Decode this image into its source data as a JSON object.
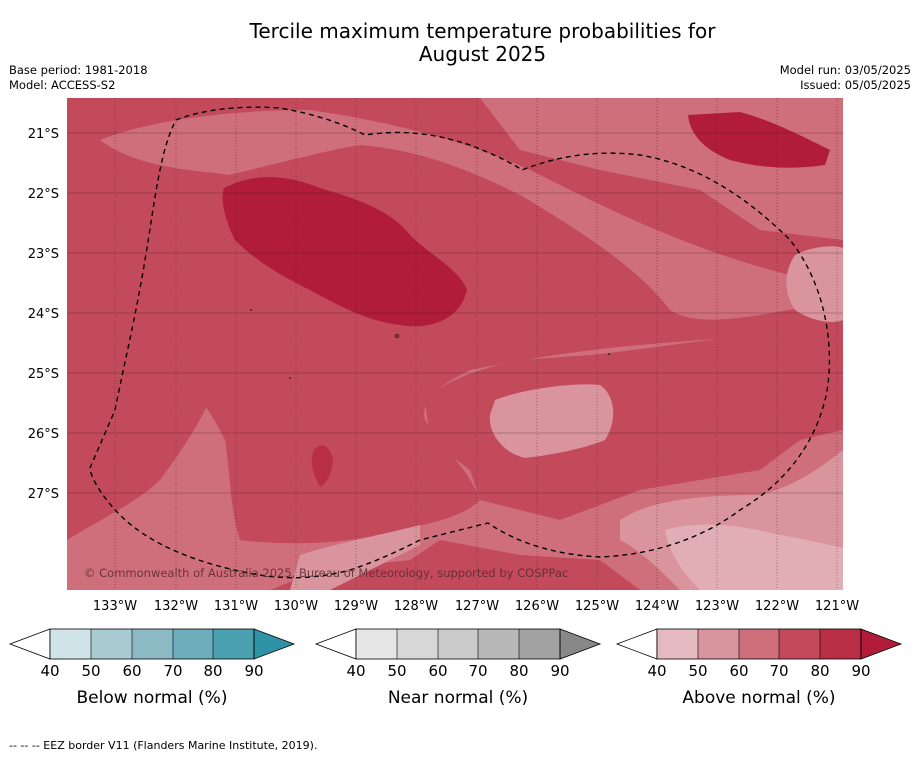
{
  "header": {
    "title_line1": "Tercile maximum temperature probabilities for",
    "title_line2": "August 2025",
    "base_period": "Base period: 1981-2018",
    "model": "Model: ACCESS-S2",
    "model_run": "Model run: 03/05/2025",
    "issued": "Issued: 05/05/2025"
  },
  "map": {
    "lat_labels": [
      "21°S",
      "22°S",
      "23°S",
      "24°S",
      "25°S",
      "26°S",
      "27°S"
    ],
    "lon_labels": [
      "133°W",
      "132°W",
      "131°W",
      "130°W",
      "129°W",
      "128°W",
      "127°W",
      "126°W",
      "125°W",
      "124°W",
      "123°W",
      "122°W",
      "121°W"
    ],
    "copyright": "© Commonwealth of Australia 2025, Bureau of Meteorology, supported by COSPPac",
    "colors": {
      "above_50_60": "#d9949e",
      "above_60_70": "#cf6f7c",
      "above_70_80": "#c24a5b",
      "above_80_90": "#b01c3a"
    }
  },
  "colorbars": [
    {
      "label": "Below normal (%)",
      "ticks": [
        "40",
        "50",
        "60",
        "70",
        "80",
        "90"
      ],
      "colors": [
        "#cfe3e8",
        "#a8cbd2",
        "#8bbac5",
        "#6daebc",
        "#4ba0b0",
        "#2e93a5"
      ]
    },
    {
      "label": "Near normal (%)",
      "ticks": [
        "40",
        "50",
        "60",
        "70",
        "80",
        "90"
      ],
      "colors": [
        "#e6e6e6",
        "#d7d7d7",
        "#cacaca",
        "#b8b8b8",
        "#a2a2a2",
        "#888888"
      ]
    },
    {
      "label": "Above normal (%)",
      "ticks": [
        "40",
        "50",
        "60",
        "70",
        "80",
        "90"
      ],
      "colors": [
        "#e5b9c0",
        "#d9949e",
        "#cf6f7c",
        "#c24a5b",
        "#b82f45",
        "#b01c3a"
      ]
    }
  ],
  "footnote": "--  --  -- EEZ border V11 (Flanders Marine Institute, 2019)."
}
